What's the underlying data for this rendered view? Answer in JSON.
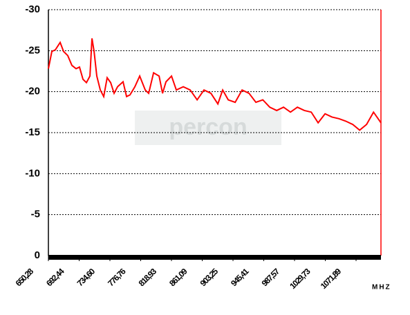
{
  "chart_data": {
    "type": "line",
    "watermark": "percon",
    "x_label": "MHZ",
    "x": [
      650.3,
      655.0,
      659.8,
      666.4,
      671.1,
      676.8,
      682.5,
      688.2,
      692.9,
      697.7,
      702.4,
      707.2,
      710.0,
      712.9,
      716.6,
      721.4,
      726.1,
      730.8,
      735.6,
      740.3,
      745.1,
      752.6,
      757.4,
      762.1,
      768.8,
      775.4,
      783.0,
      787.7,
      794.4,
      802.0,
      806.7,
      811.4,
      819.0,
      825.6,
      835.1,
      844.6,
      854.1,
      863.5,
      873.0,
      882.5,
      889.1,
      896.7,
      906.2,
      915.7,
      925.2,
      934.6,
      944.1,
      953.6,
      963.1,
      972.5,
      982.0,
      991.5,
      1001.0,
      1010.5,
      1019.9,
      1029.4,
      1038.9,
      1048.4,
      1057.8,
      1067.3,
      1076.8,
      1086.3,
      1095.8,
      1100.5,
      1106.0
    ],
    "series": [
      {
        "color": "#ff0000",
        "values": [
          -22.8,
          -24.9,
          -25.1,
          -26,
          -24.9,
          -24.4,
          -23.2,
          -22.8,
          -23,
          -21.5,
          -21.1,
          -21.9,
          -26.5,
          -24.9,
          -21.9,
          -20.2,
          -19.4,
          -21.7,
          -21.1,
          -19.8,
          -20.6,
          -21.2,
          -19.4,
          -19.6,
          -20.6,
          -21.9,
          -20.2,
          -19.8,
          -22.3,
          -21.9,
          -19.8,
          -21.2,
          -21.9,
          -20.2,
          -20.6,
          -20.2,
          -19,
          -20.2,
          -19.8,
          -18.5,
          -20.2,
          -19,
          -18.7,
          -20.2,
          -19.8,
          -18.7,
          -19,
          -18.1,
          -17.7,
          -18.1,
          -17.5,
          -18.1,
          -17.7,
          -17.5,
          -16.2,
          -17.3,
          -16.9,
          -16.7,
          -16.4,
          -16,
          -15.3,
          -16,
          -17.5,
          -16.9,
          -16.2
        ]
      }
    ],
    "xlim": [
      650.28,
      1106
    ],
    "xticks": [
      {
        "value": 650.28,
        "label": "650,28"
      },
      {
        "value": 692.44,
        "label": "692,44"
      },
      {
        "value": 734.6,
        "label": "734,60"
      },
      {
        "value": 776.76,
        "label": "776,76"
      },
      {
        "value": 818.93,
        "label": "818,93"
      },
      {
        "value": 861.09,
        "label": "861,09"
      },
      {
        "value": 903.25,
        "label": "903,25"
      },
      {
        "value": 945.41,
        "label": "945,41"
      },
      {
        "value": 987.57,
        "label": "987,57"
      },
      {
        "value": 1029.73,
        "label": "1029,73"
      },
      {
        "value": 1071.89,
        "label": "1071,89"
      }
    ],
    "ylim": [
      0,
      -30
    ],
    "yticks": [
      0,
      -5,
      -10,
      -15,
      -20,
      -25,
      -30
    ],
    "grid": true
  }
}
